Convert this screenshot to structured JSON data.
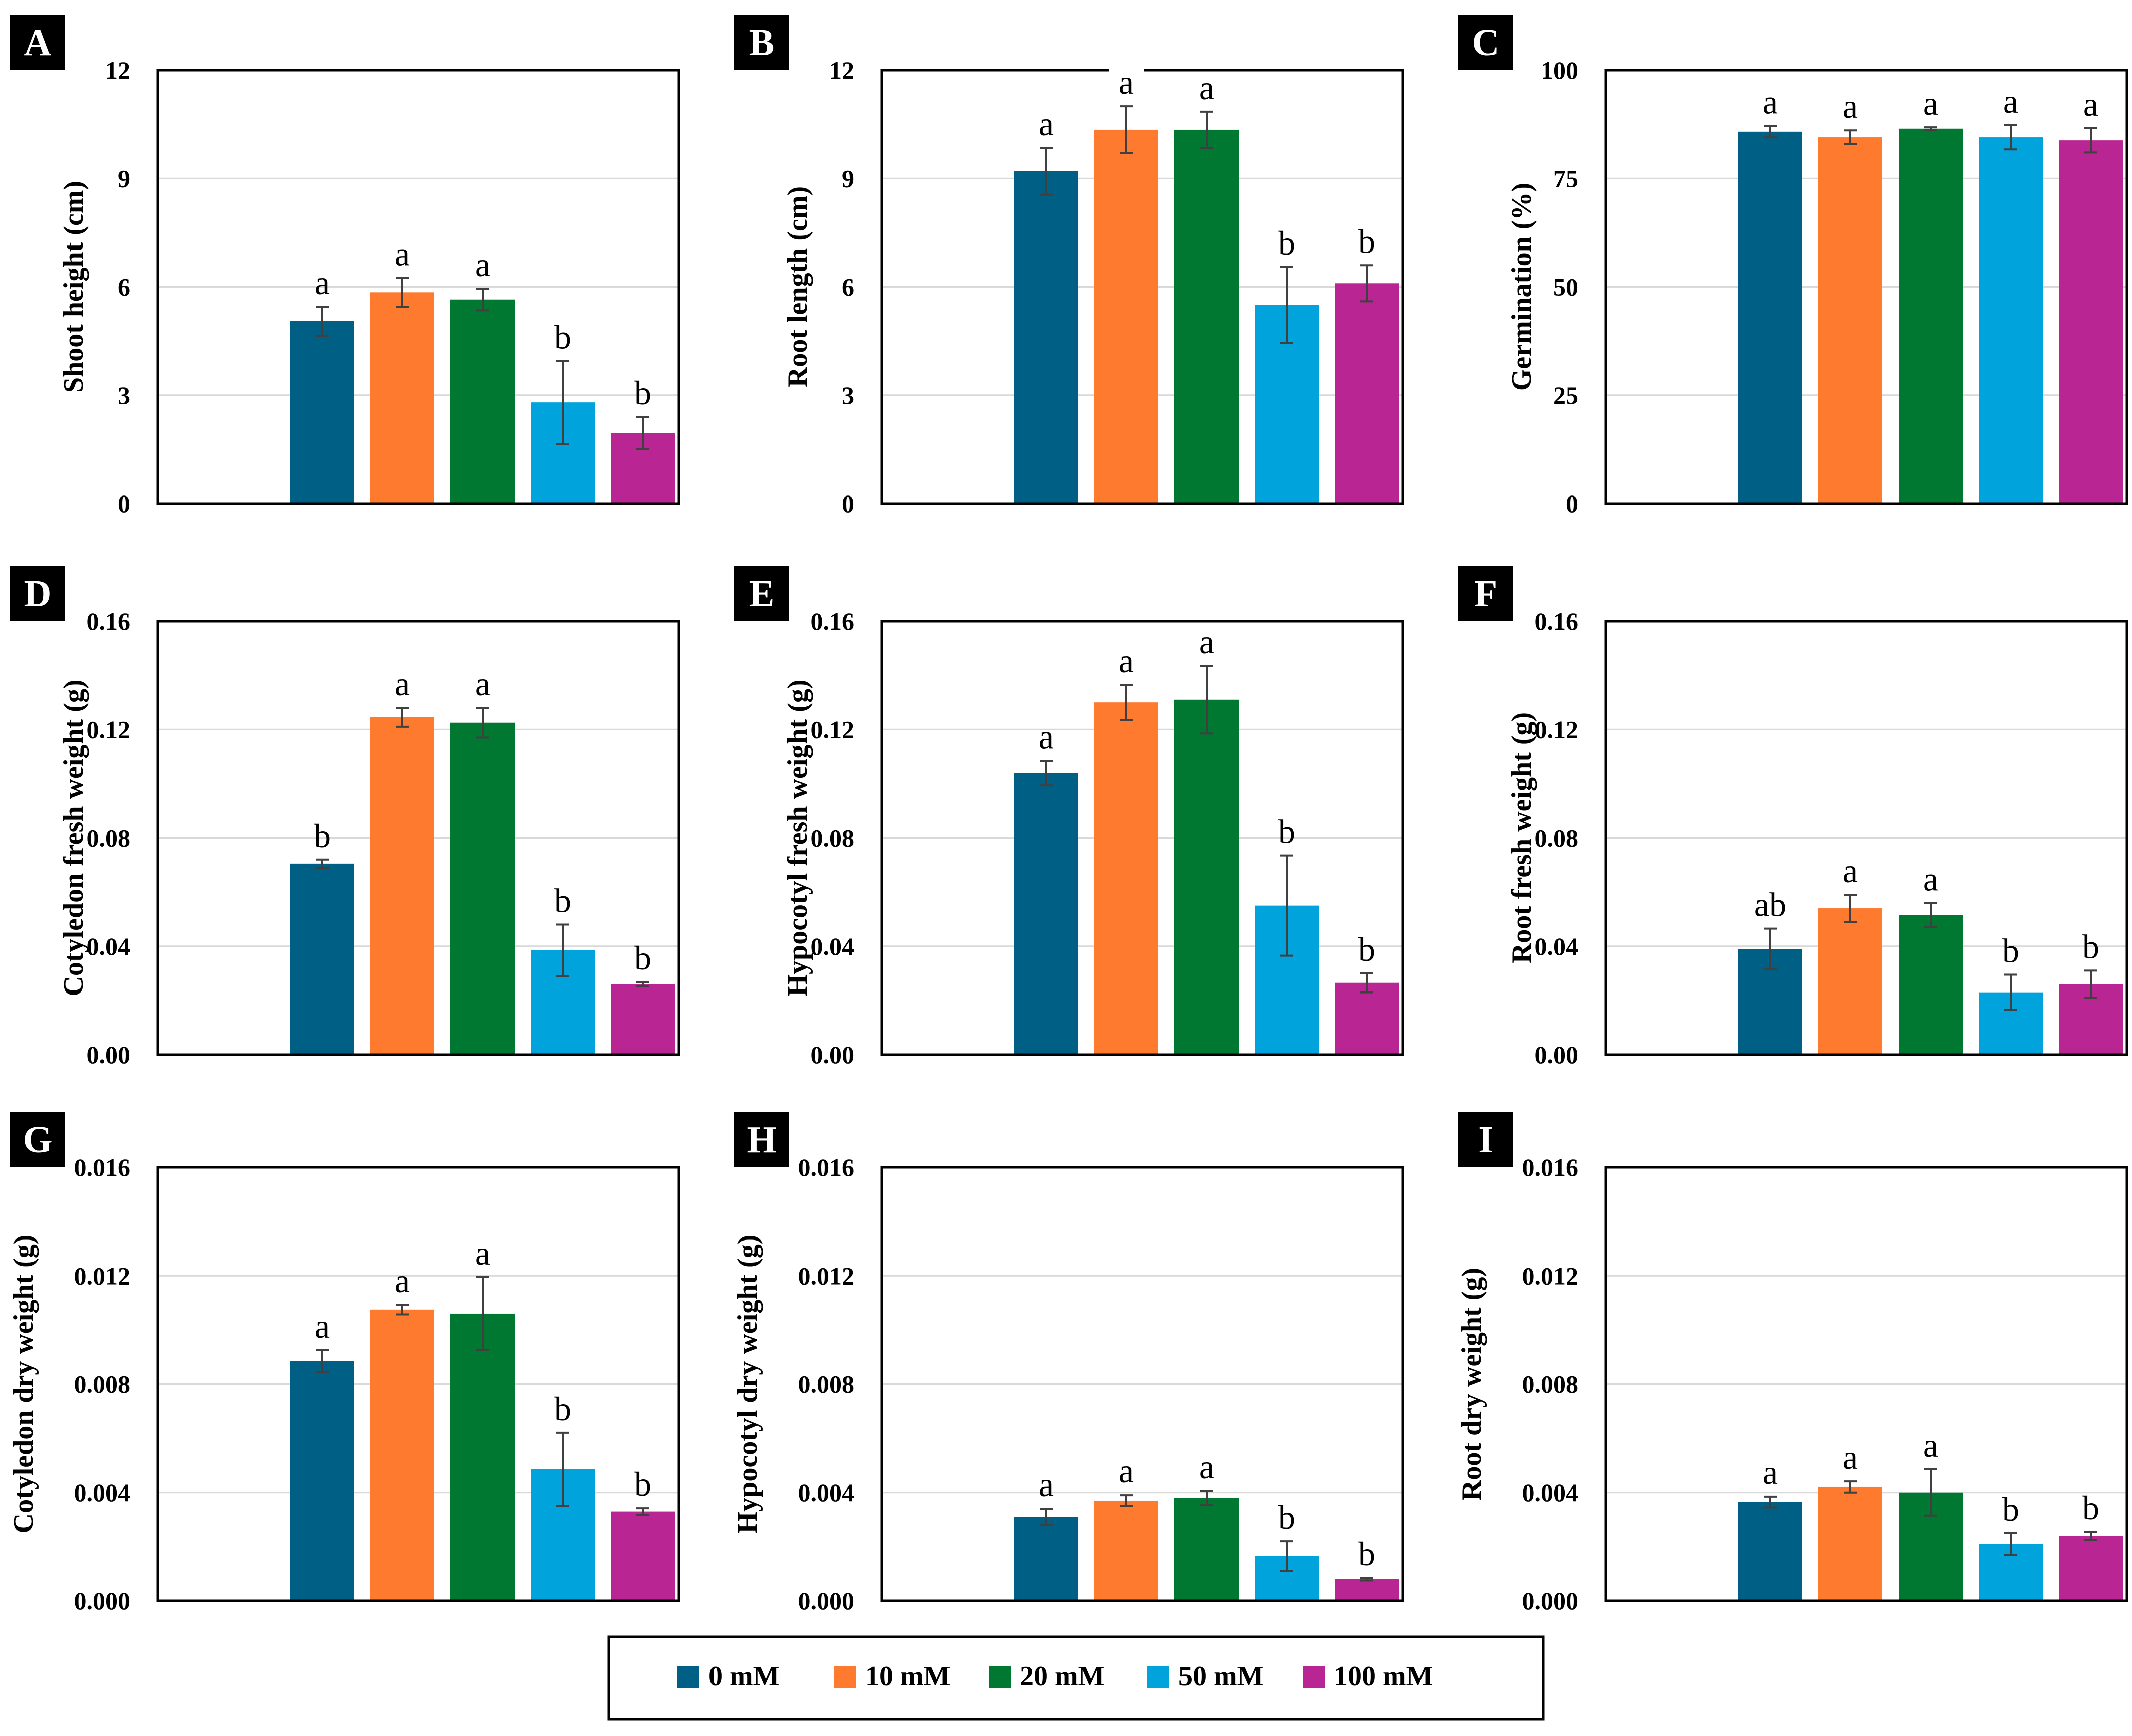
{
  "series_names": [
    "0 mM",
    "10 mM",
    "20 mM",
    "50 mM",
    "100 mM"
  ],
  "series_colors": [
    "#005f85",
    "#fe7a2f",
    "#007832",
    "#00a3dc",
    "#b92593"
  ],
  "chart_data": [
    {
      "panel": "A",
      "type": "bar",
      "ylabel": "Shoot height (cm)",
      "ylim": [
        0,
        12
      ],
      "yticks": [
        "0",
        "3",
        "6",
        "9",
        "12"
      ],
      "categories": [
        "0 mM",
        "10 mM",
        "20 mM",
        "50 mM",
        "100 mM"
      ],
      "values": [
        5.05,
        5.85,
        5.65,
        2.8,
        1.95
      ],
      "errors": [
        0.4,
        0.4,
        0.3,
        1.15,
        0.45
      ],
      "letters": [
        "a",
        "a",
        "a",
        "b",
        "b"
      ]
    },
    {
      "panel": "B",
      "type": "bar",
      "ylabel": "Root length (cm)",
      "ylim": [
        0,
        12
      ],
      "yticks": [
        "0",
        "3",
        "6",
        "9",
        "12"
      ],
      "categories": [
        "0 mM",
        "10 mM",
        "20 mM",
        "50 mM",
        "100 mM"
      ],
      "values": [
        9.2,
        10.35,
        10.35,
        5.5,
        6.1
      ],
      "errors": [
        0.65,
        0.65,
        0.5,
        1.05,
        0.5
      ],
      "letters": [
        "a",
        "a",
        "a",
        "b",
        "b"
      ]
    },
    {
      "panel": "C",
      "type": "bar",
      "ylabel": "Germination (%)",
      "ylim": [
        0,
        100
      ],
      "yticks": [
        "0",
        "25",
        "50",
        "75",
        "100"
      ],
      "categories": [
        "0 mM",
        "10 mM",
        "20 mM",
        "50 mM",
        "100 mM"
      ],
      "values": [
        85.8,
        84.5,
        86.5,
        84.5,
        83.8
      ],
      "errors": [
        1.3,
        1.6,
        0.3,
        2.8,
        2.8
      ],
      "letters": [
        "a",
        "a",
        "a",
        "a",
        "a"
      ]
    },
    {
      "panel": "D",
      "type": "bar",
      "ylabel": "Cotyledon fresh weight (g)",
      "ylim": [
        0,
        0.16
      ],
      "yticks": [
        "0.00",
        "0.04",
        "0.08",
        "0.12",
        "0.16"
      ],
      "categories": [
        "0 mM",
        "10 mM",
        "20 mM",
        "50 mM",
        "100 mM"
      ],
      "values": [
        0.0705,
        0.1245,
        0.1225,
        0.0385,
        0.026
      ],
      "errors": [
        0.0015,
        0.0035,
        0.0055,
        0.0095,
        0.0008
      ],
      "letters": [
        "b",
        "a",
        "a",
        "b",
        "b"
      ]
    },
    {
      "panel": "E",
      "type": "bar",
      "ylabel": "Hypocotyl fresh weight (g)",
      "ylim": [
        0,
        0.16
      ],
      "yticks": [
        "0.00",
        "0.04",
        "0.08",
        "0.12",
        "0.16"
      ],
      "categories": [
        "0 mM",
        "10 mM",
        "20 mM",
        "50 mM",
        "100 mM"
      ],
      "values": [
        0.104,
        0.13,
        0.131,
        0.055,
        0.0265
      ],
      "errors": [
        0.0045,
        0.0065,
        0.0125,
        0.0185,
        0.0035
      ],
      "letters": [
        "a",
        "a",
        "a",
        "b",
        "b"
      ]
    },
    {
      "panel": "F",
      "type": "bar",
      "ylabel": "Root fresh weight (g)",
      "ylim": [
        0,
        0.16
      ],
      "yticks": [
        "0.00",
        "0.04",
        "0.08",
        "0.12",
        "0.16"
      ],
      "categories": [
        "0 mM",
        "10 mM",
        "20 mM",
        "50 mM",
        "100 mM"
      ],
      "values": [
        0.039,
        0.054,
        0.0515,
        0.023,
        0.026
      ],
      "errors": [
        0.0075,
        0.005,
        0.0045,
        0.0065,
        0.005
      ],
      "letters": [
        "ab",
        "a",
        "a",
        "b",
        "b"
      ]
    },
    {
      "panel": "G",
      "type": "bar",
      "ylabel": "Cotyledon dry weight (g)",
      "ylim": [
        0,
        0.016
      ],
      "yticks": [
        "0.000",
        "0.004",
        "0.008",
        "0.012",
        "0.016"
      ],
      "categories": [
        "0 mM",
        "10 mM",
        "20 mM",
        "50 mM",
        "100 mM"
      ],
      "values": [
        0.00885,
        0.01075,
        0.0106,
        0.00485,
        0.0033
      ],
      "errors": [
        0.0004,
        0.00018,
        0.00135,
        0.00135,
        0.00012
      ],
      "letters": [
        "a",
        "a",
        "a",
        "b",
        "b"
      ]
    },
    {
      "panel": "H",
      "type": "bar",
      "ylabel": "Hypocotyl dry weight (g)",
      "ylim": [
        0,
        0.016
      ],
      "yticks": [
        "0.000",
        "0.004",
        "0.008",
        "0.012",
        "0.016"
      ],
      "categories": [
        "0 mM",
        "10 mM",
        "20 mM",
        "50 mM",
        "100 mM"
      ],
      "values": [
        0.0031,
        0.0037,
        0.0038,
        0.00165,
        0.0008
      ],
      "errors": [
        0.0003,
        0.0002,
        0.00025,
        0.00055,
        5e-05
      ],
      "letters": [
        "a",
        "a",
        "a",
        "b",
        "b"
      ]
    },
    {
      "panel": "I",
      "type": "bar",
      "ylabel": "Root dry weight (g)",
      "ylim": [
        0,
        0.016
      ],
      "yticks": [
        "0.000",
        "0.004",
        "0.008",
        "0.012",
        "0.016"
      ],
      "categories": [
        "0 mM",
        "10 mM",
        "20 mM",
        "50 mM",
        "100 mM"
      ],
      "values": [
        0.00365,
        0.0042,
        0.004,
        0.0021,
        0.0024
      ],
      "errors": [
        0.0002,
        0.0002,
        0.00085,
        0.0004,
        0.00015
      ],
      "letters": [
        "a",
        "a",
        "a",
        "b",
        "b"
      ]
    }
  ]
}
